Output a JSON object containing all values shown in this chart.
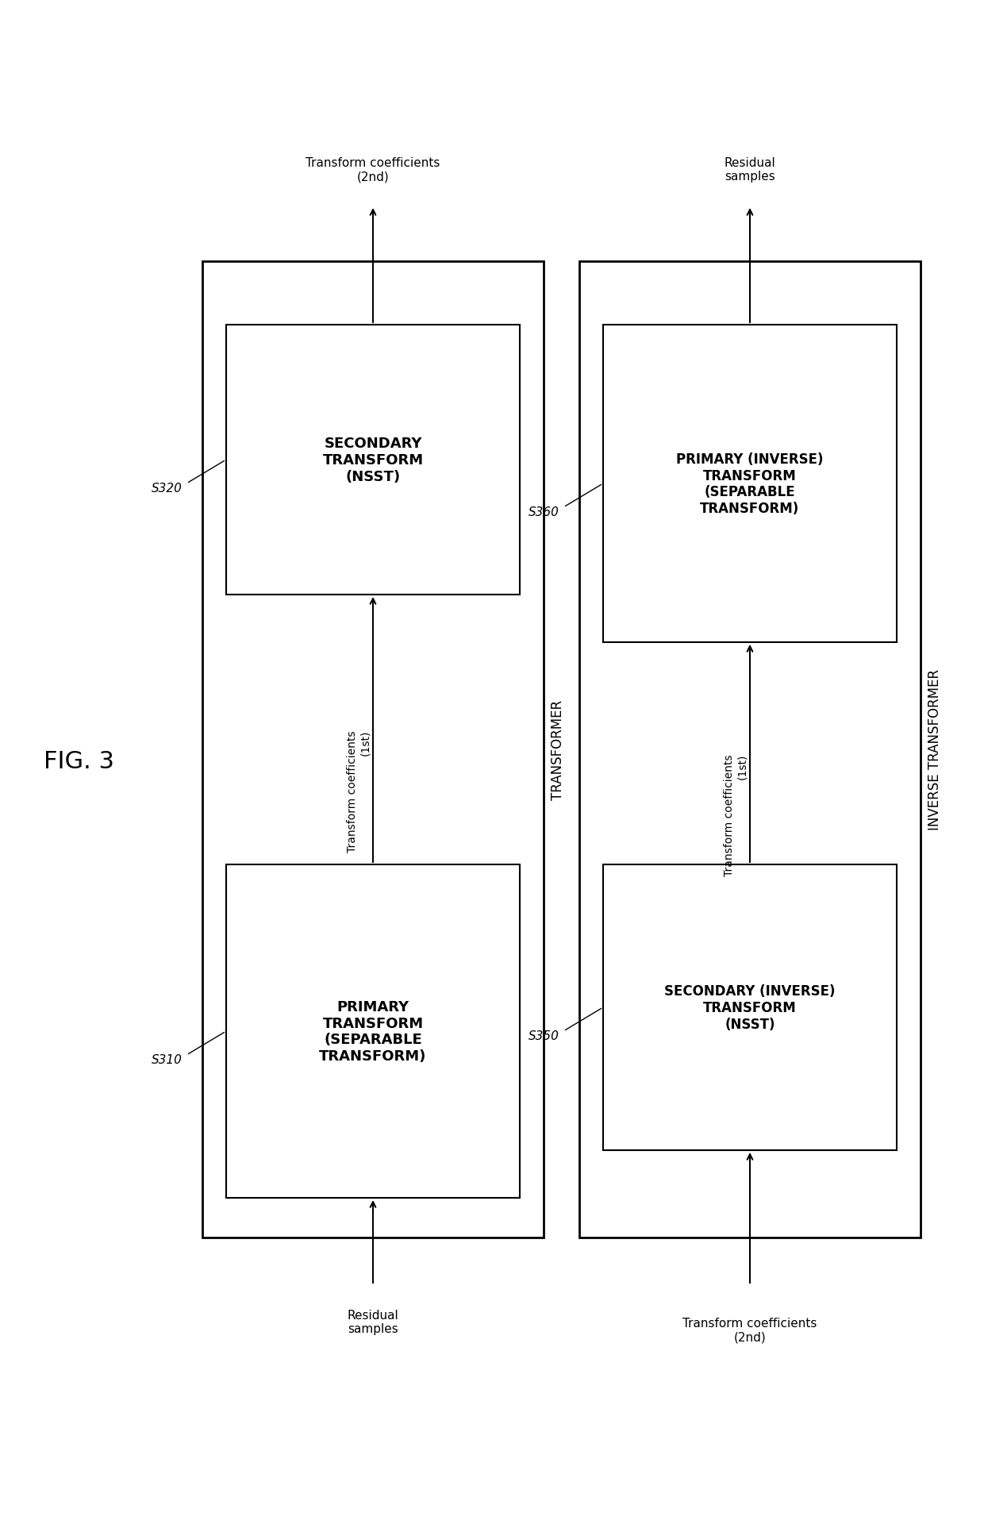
{
  "fig_label": "FIG. 3",
  "transformer_label": "TRANSFORMER",
  "inv_transformer_label": "INVERSE TRANSFORMER",
  "background_color": "#ffffff",
  "box_edge_color": "#000000",
  "text_color": "#000000"
}
